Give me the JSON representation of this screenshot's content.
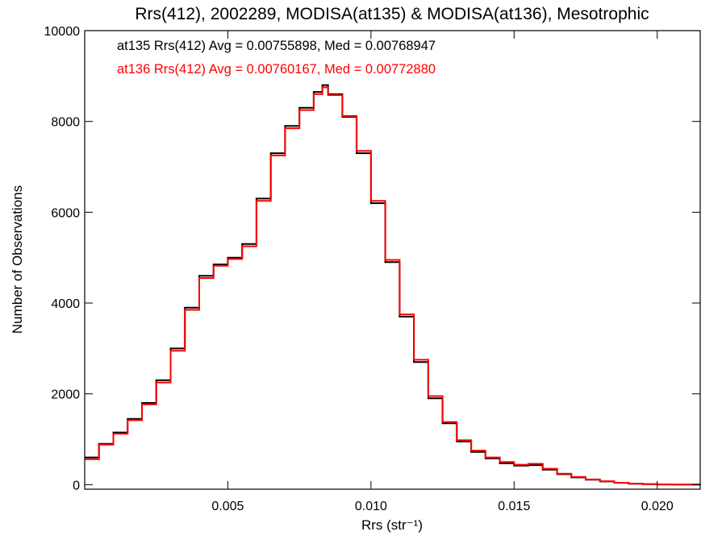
{
  "colors": {
    "series_a": "#000000",
    "series_b": "#ff0000",
    "axis": "#000000",
    "background": "#ffffff"
  },
  "chart_data": {
    "type": "line",
    "title": "Rrs(412), 2002289, MODISA(at135) & MODISA(at136), Mesotrophic",
    "xlabel": "Rrs (str⁻¹)",
    "ylabel": "Number of Observations",
    "xlim": [
      0.0,
      0.0215
    ],
    "ylim": [
      -100,
      10000
    ],
    "xticks": [
      0.005,
      0.01,
      0.015,
      0.02
    ],
    "xtick_labels": [
      "0.005",
      "0.010",
      "0.015",
      "0.020"
    ],
    "yticks": [
      0,
      2000,
      4000,
      6000,
      8000,
      10000
    ],
    "ytick_labels": [
      "0",
      "2000",
      "4000",
      "6000",
      "8000",
      "10000"
    ],
    "grid": false,
    "legend_position": "top-left",
    "annotations": [
      "at135 Rrs(412) Avg = 0.00755898, Med = 0.00768947",
      "at136 Rrs(412) Avg = 0.00760167, Med = 0.00772880"
    ],
    "series": [
      {
        "color": "#000000",
        "style": "step",
        "points": [
          [
            0.0,
            600
          ],
          [
            0.0005,
            900
          ],
          [
            0.001,
            1150
          ],
          [
            0.0015,
            1450
          ],
          [
            0.002,
            1800
          ],
          [
            0.0025,
            2300
          ],
          [
            0.003,
            3000
          ],
          [
            0.0035,
            3900
          ],
          [
            0.004,
            4600
          ],
          [
            0.0045,
            4850
          ],
          [
            0.005,
            5000
          ],
          [
            0.0055,
            5300
          ],
          [
            0.006,
            6300
          ],
          [
            0.0065,
            7300
          ],
          [
            0.007,
            7900
          ],
          [
            0.0075,
            8300
          ],
          [
            0.008,
            8650
          ],
          [
            0.0083,
            8800
          ],
          [
            0.0085,
            8600
          ],
          [
            0.009,
            8100
          ],
          [
            0.0095,
            7300
          ],
          [
            0.01,
            6200
          ],
          [
            0.0105,
            4900
          ],
          [
            0.011,
            3700
          ],
          [
            0.0115,
            2700
          ],
          [
            0.012,
            1900
          ],
          [
            0.0125,
            1350
          ],
          [
            0.013,
            950
          ],
          [
            0.0135,
            720
          ],
          [
            0.014,
            580
          ],
          [
            0.0145,
            470
          ],
          [
            0.015,
            420
          ],
          [
            0.0155,
            430
          ],
          [
            0.016,
            330
          ],
          [
            0.0165,
            230
          ],
          [
            0.017,
            160
          ],
          [
            0.0175,
            110
          ],
          [
            0.018,
            70
          ],
          [
            0.0185,
            40
          ],
          [
            0.019,
            20
          ],
          [
            0.0195,
            10
          ],
          [
            0.02,
            5
          ],
          [
            0.0205,
            2
          ],
          [
            0.0215,
            0
          ]
        ]
      },
      {
        "color": "#ff0000",
        "style": "step",
        "points": [
          [
            0.0,
            560
          ],
          [
            0.0005,
            880
          ],
          [
            0.001,
            1120
          ],
          [
            0.0015,
            1420
          ],
          [
            0.002,
            1770
          ],
          [
            0.0025,
            2250
          ],
          [
            0.003,
            2950
          ],
          [
            0.0035,
            3850
          ],
          [
            0.004,
            4550
          ],
          [
            0.0045,
            4820
          ],
          [
            0.005,
            4970
          ],
          [
            0.0055,
            5250
          ],
          [
            0.006,
            6250
          ],
          [
            0.0065,
            7250
          ],
          [
            0.007,
            7850
          ],
          [
            0.0075,
            8250
          ],
          [
            0.008,
            8600
          ],
          [
            0.0083,
            8750
          ],
          [
            0.0085,
            8580
          ],
          [
            0.009,
            8120
          ],
          [
            0.0095,
            7350
          ],
          [
            0.01,
            6250
          ],
          [
            0.0105,
            4950
          ],
          [
            0.011,
            3750
          ],
          [
            0.0115,
            2750
          ],
          [
            0.012,
            1950
          ],
          [
            0.0125,
            1380
          ],
          [
            0.013,
            980
          ],
          [
            0.0135,
            750
          ],
          [
            0.014,
            600
          ],
          [
            0.0145,
            500
          ],
          [
            0.015,
            440
          ],
          [
            0.0155,
            460
          ],
          [
            0.016,
            350
          ],
          [
            0.0165,
            240
          ],
          [
            0.017,
            170
          ],
          [
            0.0175,
            115
          ],
          [
            0.018,
            75
          ],
          [
            0.0185,
            42
          ],
          [
            0.019,
            22
          ],
          [
            0.0195,
            11
          ],
          [
            0.02,
            5
          ],
          [
            0.0205,
            2
          ],
          [
            0.0215,
            0
          ]
        ]
      }
    ]
  }
}
